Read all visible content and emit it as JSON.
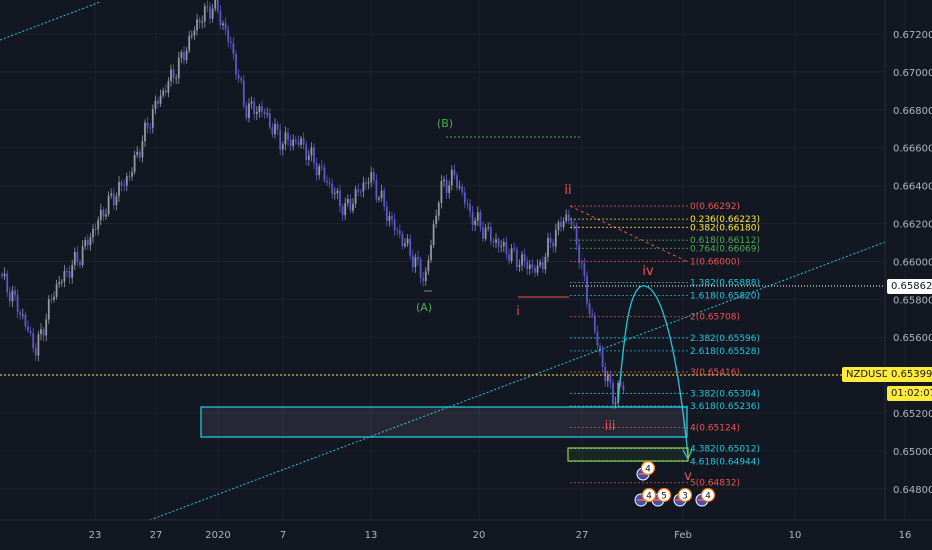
{
  "symbol": "NZDUSD",
  "last_price": "0.65399",
  "countdown": "01:02:07",
  "crosshair_price": "0.65862",
  "y_ticks": [
    "0.67200",
    "0.67000",
    "0.66800",
    "0.66600",
    "0.66400",
    "0.66200",
    "0.66000",
    "0.65800",
    "0.65600",
    "0.65400",
    "0.65200",
    "0.65000",
    "0.64800"
  ],
  "x_ticks": [
    "23",
    "27",
    "2020",
    "7",
    "13",
    "20",
    "27",
    "Feb",
    "10",
    "16"
  ],
  "wave_labels": {
    "A": "(A)",
    "B": "(B)",
    "i": "i",
    "ii": "ii",
    "iii": "iii",
    "iv": "iv",
    "v": "v"
  },
  "fib_top": [
    {
      "text": "0(0.66292)",
      "color": "#ef5350",
      "price": 0.66292
    },
    {
      "text": "0.236(0.66223)",
      "color": "#ffeb3b",
      "price": 0.66223
    },
    {
      "text": "0.382(0.66180)",
      "color": "#ffeb3b",
      "price": 0.6618
    },
    {
      "text": "0.618(0.66112)",
      "color": "#4caf50",
      "price": 0.66112
    },
    {
      "text": "0.764(0.66069)",
      "color": "#4caf50",
      "price": 0.66069
    },
    {
      "text": "1(0.66000)",
      "color": "#ef5350",
      "price": 0.66
    }
  ],
  "fib_ext": [
    {
      "text": "1.382(0.65888)",
      "color": "#26c6da",
      "price": 0.65888
    },
    {
      "text": "1.618(0.65820)",
      "color": "#26c6da",
      "price": 0.6582
    },
    {
      "text": "2(0.65708)",
      "color": "#ef5350",
      "price": 0.65708
    },
    {
      "text": "2.382(0.65596)",
      "color": "#26c6da",
      "price": 0.65596
    },
    {
      "text": "2.618(0.65528)",
      "color": "#26c6da",
      "price": 0.65528
    },
    {
      "text": "3(0.65416)",
      "color": "#ef5350",
      "price": 0.65416
    },
    {
      "text": "3.382(0.65304)",
      "color": "#26c6da",
      "price": 0.65304
    },
    {
      "text": "3.618(0.65236)",
      "color": "#26c6da",
      "price": 0.65236
    },
    {
      "text": "4(0.65124)",
      "color": "#ef5350",
      "price": 0.65124
    },
    {
      "text": "4.382(0.65012)",
      "color": "#26c6da",
      "price": 0.65012
    },
    {
      "text": "4.618(0.64944)",
      "color": "#26c6da",
      "price": 0.64944
    },
    {
      "text": "5(0.64832)",
      "color": "#ef5350",
      "price": 0.64832
    }
  ],
  "event_badges": [
    "4",
    "4",
    "5",
    "3",
    "4"
  ],
  "colors": {
    "bg": "#131722",
    "grid": "#1e222d",
    "up": "#9598a1",
    "down": "#5c58c8",
    "accent": "#ffeb3b",
    "cyan": "#26c6da",
    "red": "#ef5350",
    "green": "#4caf50"
  }
}
